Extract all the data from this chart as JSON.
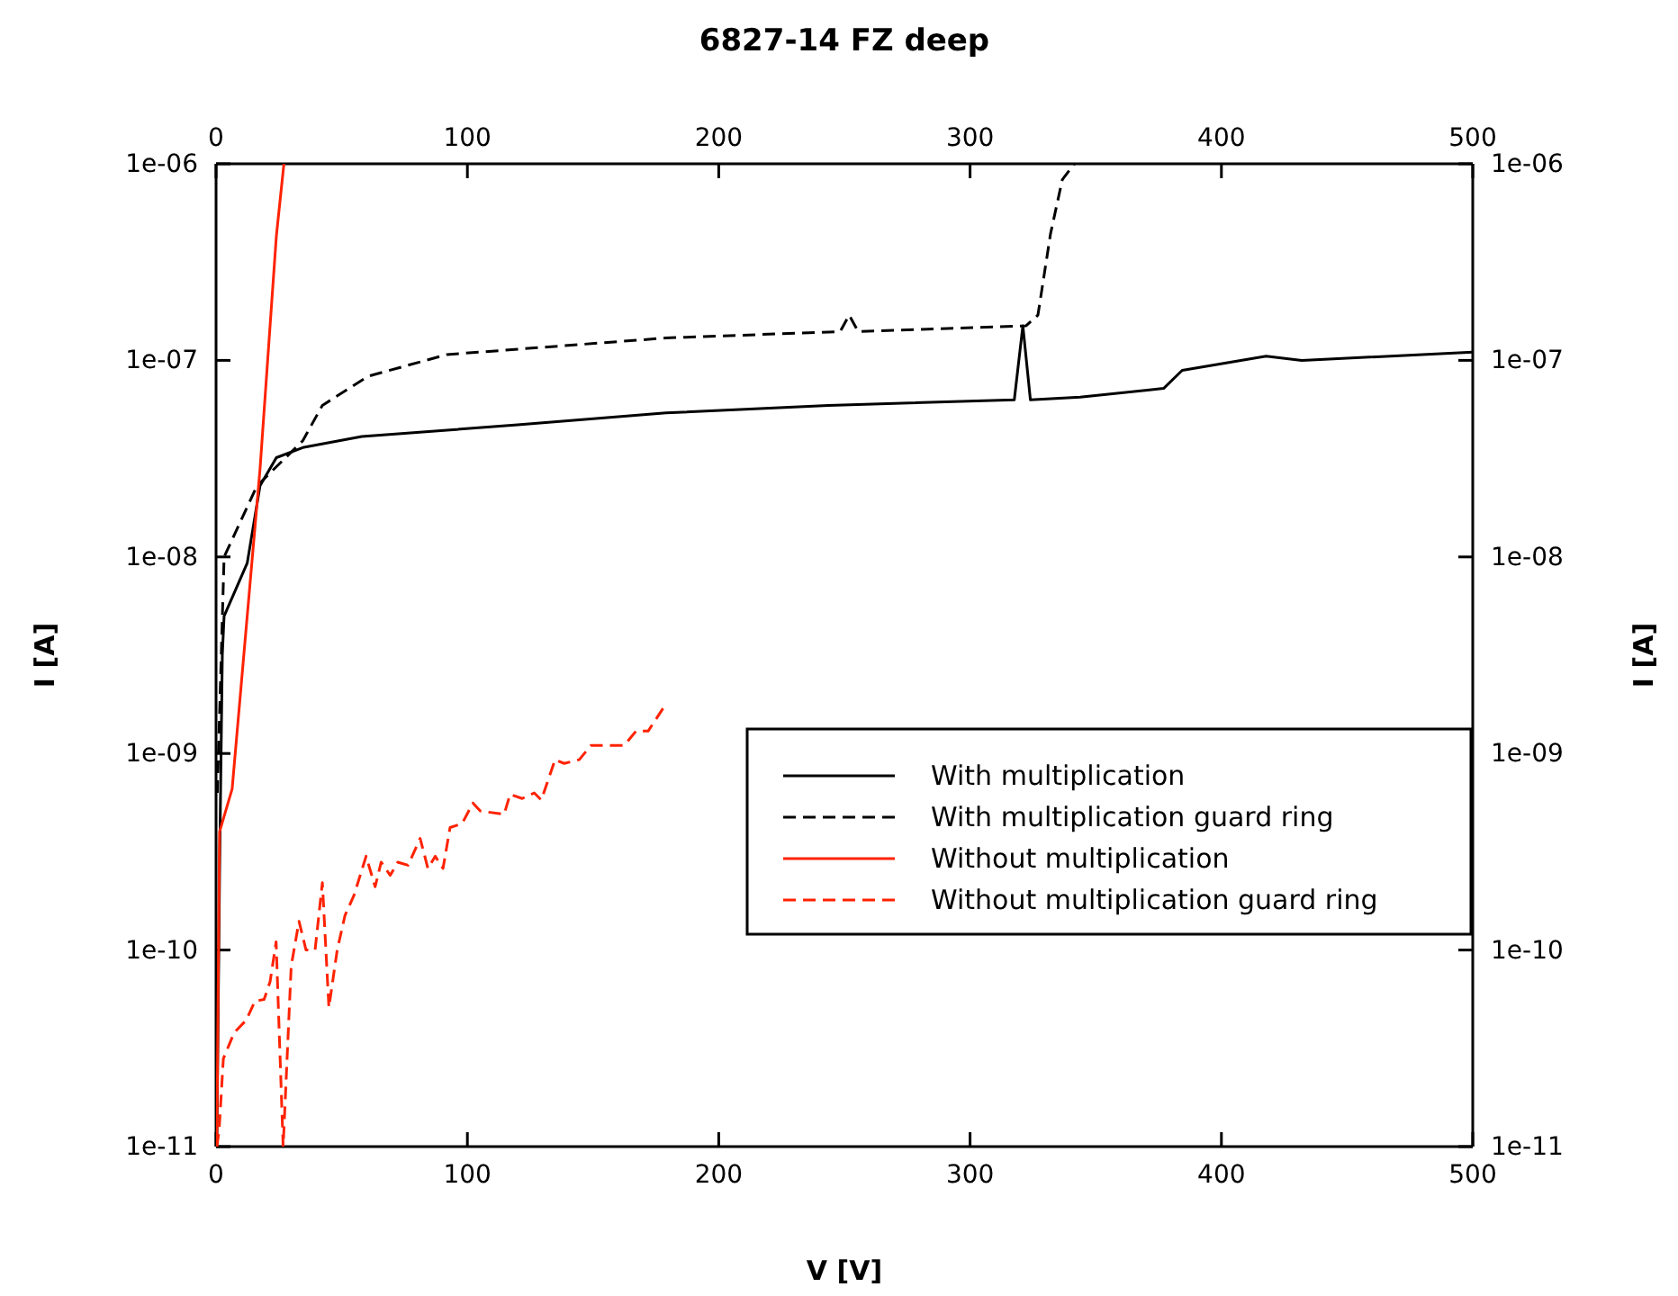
{
  "chart_data": {
    "type": "line",
    "title": "6827-14 FZ deep",
    "xlabel": "V [V]",
    "ylabel": "I [A]",
    "y2label": "I [A]",
    "log": true,
    "grid": false,
    "legend": "right",
    "marker": "none",
    "xlim": [
      0,
      500
    ],
    "xticks": [
      0,
      100,
      200,
      300,
      400,
      500
    ],
    "x2lim": [
      0,
      500
    ],
    "x2ticks": [
      0,
      100,
      200,
      300,
      400,
      500
    ],
    "ylim": [
      1e-11,
      1e-06
    ],
    "yticks": [
      {
        "value": 1e-11,
        "label": "1e-11"
      },
      {
        "value": 1e-10,
        "label": "1e-10"
      },
      {
        "value": 1e-09,
        "label": "1e-09"
      },
      {
        "value": 1e-08,
        "label": "1e-08"
      },
      {
        "value": 1e-07,
        "label": "1e-07"
      },
      {
        "value": 1e-06,
        "label": "1e-06"
      }
    ],
    "series": [
      {
        "name": "With multiplication",
        "color": "#000000",
        "line_style": "solid",
        "x": [
          0.3,
          1.5,
          2.5,
          3.2,
          12.4,
          17.5,
          24,
          34.5,
          58,
          120,
          179,
          243.6,
          317.6,
          321,
          324,
          343.8,
          377,
          384.4,
          417.8,
          432,
          500
        ],
        "values": [
          1e-11,
          3.2e-10,
          3.2e-09,
          5e-09,
          9.3e-09,
          2.3e-08,
          3.2e-08,
          3.6e-08,
          4.1e-08,
          4.7e-08,
          5.4e-08,
          5.9e-08,
          6.3e-08,
          1.5e-07,
          6.3e-08,
          6.5e-08,
          7.2e-08,
          8.9e-08,
          1.05e-07,
          1e-07,
          1.1e-07
        ]
      },
      {
        "name": "With multiplication guard ring",
        "color": "#000000",
        "line_style": "dashed",
        "x": [
          0.5,
          3.2,
          16.3,
          34.5,
          42.3,
          60.5,
          91.8,
          179,
          248.3,
          251.9,
          255.5,
          322.3,
          327,
          332,
          336.7,
          341.5
        ],
        "values": [
          6.3e-10,
          1e-08,
          2.3e-08,
          3.9e-08,
          5.9e-08,
          8.3e-08,
          1.07e-07,
          1.3e-07,
          1.4e-07,
          1.7e-07,
          1.4e-07,
          1.5e-07,
          1.7e-07,
          4.4e-07,
          8.3e-07,
          1e-06
        ]
      },
      {
        "name": "Without multiplication",
        "color": "#ff2200",
        "line_style": "solid",
        "x": [
          0.3,
          1.4,
          6.4,
          17.5,
          24,
          27
        ],
        "values": [
          1e-11,
          4e-10,
          6.6e-10,
          2.8e-08,
          4.3e-07,
          1e-06
        ]
      },
      {
        "name": "Without multiplication guard ring",
        "color": "#ff2200",
        "line_style": "dashed",
        "x": [
          0.3,
          1.2,
          2.9,
          7.2,
          12,
          15.5,
          19.1,
          21.5,
          23.9,
          26.7,
          29.9,
          33,
          35.8,
          39.4,
          42.3,
          44.9,
          48.2,
          51.3,
          54.9,
          59.7,
          63.3,
          65.7,
          69.3,
          72.3,
          76.4,
          81.2,
          84.3,
          87.2,
          90.3,
          93.1,
          97.9,
          102.2,
          105.1,
          114.6,
          117,
          121.8,
          126.6,
          129.4,
          134.9,
          138.5,
          144.5,
          149.2,
          162.4,
          167.1,
          171.9,
          177.9
        ],
        "values": [
          1e-11,
          1.2e-11,
          2.8e-11,
          3.8e-11,
          4.4e-11,
          5.5e-11,
          5.6e-11,
          6.9e-11,
          1.1e-10,
          1e-11,
          8.3e-11,
          1.4e-10,
          1e-10,
          1e-10,
          2.2e-10,
          5.1e-11,
          1e-10,
          1.5e-10,
          1.9e-10,
          3e-10,
          2.1e-10,
          2.8e-10,
          2.4e-10,
          2.8e-10,
          2.7e-10,
          3.7e-10,
          2.6e-10,
          3e-10,
          2.6e-10,
          4.2e-10,
          4.4e-10,
          5.6e-10,
          5.1e-10,
          4.9e-10,
          6.2e-10,
          5.9e-10,
          6.3e-10,
          5.8e-10,
          9.3e-10,
          8.9e-10,
          9.3e-10,
          1.1e-09,
          1.1e-09,
          1.3e-09,
          1.3e-09,
          1.7e-09
        ]
      }
    ]
  }
}
